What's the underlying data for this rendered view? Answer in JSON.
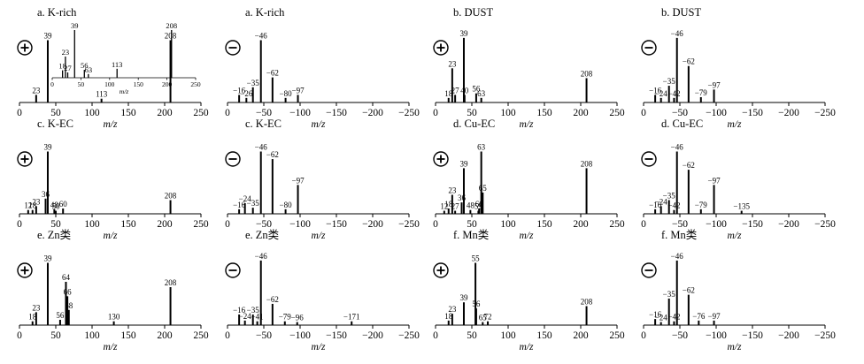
{
  "xlabel": "m/z",
  "pos_sign": "+",
  "neg_sign": "−",
  "colors": {
    "bar": "#000000",
    "axis": "#000000",
    "background": "#ffffff"
  },
  "chart_data": [
    {
      "id": "K-rich-pos",
      "title": "a. K-rich",
      "type": "bar",
      "polarity": "positive",
      "xlim": [
        0,
        250
      ],
      "xticks": [
        0,
        50,
        100,
        150,
        200,
        250
      ],
      "xtick_labels": [
        "0",
        "50",
        "100",
        "150",
        "200",
        "250"
      ],
      "peaks": [
        {
          "x": 23,
          "h": 0.1,
          "label": "23"
        },
        {
          "x": 39,
          "h": 0.82,
          "label": "39"
        },
        {
          "x": 113,
          "h": 0.05,
          "label": "113"
        },
        {
          "x": 208,
          "h": 0.82,
          "label": "208"
        }
      ],
      "inset": {
        "xlim": [
          0,
          250
        ],
        "xticks": [
          0,
          50,
          100,
          150,
          200,
          250
        ],
        "xtick_labels": [
          "0",
          "50",
          "100",
          "150",
          "200",
          "250"
        ],
        "xlabel": "m/z",
        "peaks": [
          {
            "x": 18,
            "h": 0.14,
            "label": "18"
          },
          {
            "x": 23,
            "h": 0.4,
            "label": "23"
          },
          {
            "x": 27,
            "h": 0.1,
            "label": "27"
          },
          {
            "x": 39,
            "h": 0.9,
            "label": "39"
          },
          {
            "x": 56,
            "h": 0.15,
            "label": "56"
          },
          {
            "x": 63,
            "h": 0.07,
            "label": "63"
          },
          {
            "x": 113,
            "h": 0.17,
            "label": "113"
          },
          {
            "x": 208,
            "h": 0.9,
            "label": "208"
          }
        ]
      }
    },
    {
      "id": "K-rich-neg",
      "title": "a. K-rich",
      "type": "bar",
      "polarity": "negative",
      "xlim": [
        0,
        -250
      ],
      "xticks": [
        0,
        -50,
        -100,
        -150,
        -200,
        -250
      ],
      "xtick_labels": [
        "0",
        "−50",
        "−100",
        "−150",
        "−200",
        "−250"
      ],
      "peaks": [
        {
          "x": -16,
          "h": 0.1,
          "label": "−16"
        },
        {
          "x": -26,
          "h": 0.06,
          "label": "−26"
        },
        {
          "x": -35,
          "h": 0.2,
          "label": "−35"
        },
        {
          "x": -46,
          "h": 0.82,
          "label": "−46"
        },
        {
          "x": -62,
          "h": 0.33,
          "label": "−62"
        },
        {
          "x": -80,
          "h": 0.06,
          "label": "−80"
        },
        {
          "x": -97,
          "h": 0.1,
          "label": "−97"
        }
      ]
    },
    {
      "id": "DUST-pos",
      "title": "b. DUST",
      "type": "bar",
      "polarity": "positive",
      "xlim": [
        0,
        250
      ],
      "xticks": [
        0,
        50,
        100,
        150,
        200,
        250
      ],
      "xtick_labels": [
        "0",
        "50",
        "100",
        "150",
        "200",
        "250"
      ],
      "peaks": [
        {
          "x": 18,
          "h": 0.06,
          "label": "18"
        },
        {
          "x": 23,
          "h": 0.45,
          "label": "23"
        },
        {
          "x": 27,
          "h": 0.1,
          "label": "27"
        },
        {
          "x": 39,
          "h": 0.85,
          "label": "39"
        },
        {
          "x": 40,
          "h": 0.1,
          "label": "40"
        },
        {
          "x": 56,
          "h": 0.12,
          "label": "56"
        },
        {
          "x": 63,
          "h": 0.06,
          "label": "63"
        },
        {
          "x": 208,
          "h": 0.32,
          "label": "208"
        }
      ]
    },
    {
      "id": "DUST-neg",
      "title": "b. DUST",
      "type": "bar",
      "polarity": "negative",
      "xlim": [
        0,
        -250
      ],
      "xticks": [
        0,
        -50,
        -100,
        -150,
        -200,
        -250
      ],
      "xtick_labels": [
        "0",
        "−50",
        "−100",
        "−150",
        "−200",
        "−250"
      ],
      "peaks": [
        {
          "x": -16,
          "h": 0.1,
          "label": "−16"
        },
        {
          "x": -24,
          "h": 0.06,
          "label": "−24"
        },
        {
          "x": -35,
          "h": 0.22,
          "label": "−35"
        },
        {
          "x": -42,
          "h": 0.06,
          "label": "−42"
        },
        {
          "x": -46,
          "h": 0.85,
          "label": "−46"
        },
        {
          "x": -62,
          "h": 0.48,
          "label": "−62"
        },
        {
          "x": -79,
          "h": 0.07,
          "label": "−79"
        },
        {
          "x": -97,
          "h": 0.17,
          "label": "−97"
        }
      ]
    },
    {
      "id": "K-EC-pos",
      "title": "c. K-EC",
      "type": "bar",
      "polarity": "positive",
      "xlim": [
        0,
        250
      ],
      "xticks": [
        0,
        50,
        100,
        150,
        200,
        250
      ],
      "xtick_labels": [
        "0",
        "50",
        "100",
        "150",
        "200",
        "250"
      ],
      "peaks": [
        {
          "x": 12,
          "h": 0.05,
          "label": "12"
        },
        {
          "x": 18,
          "h": 0.05,
          "label": "18"
        },
        {
          "x": 23,
          "h": 0.1,
          "label": "23"
        },
        {
          "x": 36,
          "h": 0.2,
          "label": "36"
        },
        {
          "x": 39,
          "h": 0.82,
          "label": "39"
        },
        {
          "x": 48,
          "h": 0.06,
          "label": "48"
        },
        {
          "x": 50,
          "h": 0.04,
          "label": "50"
        },
        {
          "x": 60,
          "h": 0.07,
          "label": "60"
        },
        {
          "x": 208,
          "h": 0.18,
          "label": "208"
        }
      ]
    },
    {
      "id": "K-EC-neg",
      "title": "c. K-EC",
      "type": "bar",
      "polarity": "negative",
      "xlim": [
        0,
        -250
      ],
      "xticks": [
        0,
        -50,
        -100,
        -150,
        -200,
        -250
      ],
      "xtick_labels": [
        "0",
        "−50",
        "−100",
        "−150",
        "−200",
        "−250"
      ],
      "peaks": [
        {
          "x": -16,
          "h": 0.06,
          "label": "−16"
        },
        {
          "x": -24,
          "h": 0.14,
          "label": "−24"
        },
        {
          "x": -35,
          "h": 0.08,
          "label": "−35"
        },
        {
          "x": -46,
          "h": 0.82,
          "label": "−46"
        },
        {
          "x": -62,
          "h": 0.72,
          "label": "−62"
        },
        {
          "x": -80,
          "h": 0.06,
          "label": "−80"
        },
        {
          "x": -97,
          "h": 0.38,
          "label": "−97"
        }
      ]
    },
    {
      "id": "Cu-EC-pos",
      "title": "d. Cu-EC",
      "type": "bar",
      "polarity": "positive",
      "xlim": [
        0,
        250
      ],
      "xticks": [
        0,
        50,
        100,
        150,
        200,
        250
      ],
      "xtick_labels": [
        "0",
        "50",
        "100",
        "150",
        "200",
        "250"
      ],
      "peaks": [
        {
          "x": 12,
          "h": 0.04,
          "label": "12"
        },
        {
          "x": 18,
          "h": 0.07,
          "label": "18"
        },
        {
          "x": 23,
          "h": 0.25,
          "label": "23"
        },
        {
          "x": 27,
          "h": 0.04,
          "label": "27"
        },
        {
          "x": 36,
          "h": 0.15,
          "label": "36"
        },
        {
          "x": 39,
          "h": 0.6,
          "label": "39"
        },
        {
          "x": 48,
          "h": 0.05,
          "label": "48"
        },
        {
          "x": 59,
          "h": 0.04,
          "label": "59"
        },
        {
          "x": 60,
          "h": 0.07,
          "label": "60"
        },
        {
          "x": 63,
          "h": 0.82,
          "label": "63"
        },
        {
          "x": 65,
          "h": 0.28,
          "label": "65"
        },
        {
          "x": 208,
          "h": 0.6,
          "label": "208"
        }
      ]
    },
    {
      "id": "Cu-EC-neg",
      "title": "d. Cu-EC",
      "type": "bar",
      "polarity": "negative",
      "xlim": [
        0,
        -250
      ],
      "xticks": [
        0,
        -50,
        -100,
        -150,
        -200,
        -250
      ],
      "xtick_labels": [
        "0",
        "−50",
        "−100",
        "−150",
        "−200",
        "−250"
      ],
      "peaks": [
        {
          "x": -16,
          "h": 0.06,
          "label": "−16"
        },
        {
          "x": -24,
          "h": 0.1,
          "label": "−24"
        },
        {
          "x": -35,
          "h": 0.18,
          "label": "−35"
        },
        {
          "x": -42,
          "h": 0.05,
          "label": "−42"
        },
        {
          "x": -46,
          "h": 0.82,
          "label": "−46"
        },
        {
          "x": -62,
          "h": 0.58,
          "label": "−62"
        },
        {
          "x": -79,
          "h": 0.06,
          "label": "−79"
        },
        {
          "x": -97,
          "h": 0.38,
          "label": "−97"
        },
        {
          "x": -135,
          "h": 0.04,
          "label": "−135"
        }
      ]
    },
    {
      "id": "Zn-pos",
      "title": "e. Zn类",
      "type": "bar",
      "polarity": "positive",
      "xlim": [
        0,
        250
      ],
      "xticks": [
        0,
        50,
        100,
        150,
        200,
        250
      ],
      "xtick_labels": [
        "0",
        "50",
        "100",
        "150",
        "200",
        "250"
      ],
      "peaks": [
        {
          "x": 18,
          "h": 0.05,
          "label": "18"
        },
        {
          "x": 23,
          "h": 0.17,
          "label": "23"
        },
        {
          "x": 39,
          "h": 0.82,
          "label": "39"
        },
        {
          "x": 56,
          "h": 0.07,
          "label": "56"
        },
        {
          "x": 64,
          "h": 0.57,
          "label": "64"
        },
        {
          "x": 66,
          "h": 0.38,
          "label": "66"
        },
        {
          "x": 68,
          "h": 0.2,
          "label": "68"
        },
        {
          "x": 130,
          "h": 0.05,
          "label": "130"
        },
        {
          "x": 208,
          "h": 0.5,
          "label": "208"
        }
      ]
    },
    {
      "id": "Zn-neg",
      "title": "e. Zn类",
      "type": "bar",
      "polarity": "negative",
      "xlim": [
        0,
        -250
      ],
      "xticks": [
        0,
        -50,
        -100,
        -150,
        -200,
        -250
      ],
      "xtick_labels": [
        "0",
        "−50",
        "−100",
        "−150",
        "−200",
        "−250"
      ],
      "peaks": [
        {
          "x": -16,
          "h": 0.14,
          "label": "−16"
        },
        {
          "x": -24,
          "h": 0.06,
          "label": "−24"
        },
        {
          "x": -35,
          "h": 0.14,
          "label": "−35"
        },
        {
          "x": -41,
          "h": 0.05,
          "label": "−41"
        },
        {
          "x": -46,
          "h": 0.85,
          "label": "−46"
        },
        {
          "x": -62,
          "h": 0.28,
          "label": "−62"
        },
        {
          "x": -79,
          "h": 0.05,
          "label": "−79"
        },
        {
          "x": -96,
          "h": 0.04,
          "label": "−96"
        },
        {
          "x": -171,
          "h": 0.05,
          "label": "−171"
        }
      ]
    },
    {
      "id": "Mn-pos",
      "title": "f. Mn类",
      "type": "bar",
      "polarity": "positive",
      "xlim": [
        0,
        250
      ],
      "xticks": [
        0,
        50,
        100,
        150,
        200,
        250
      ],
      "xtick_labels": [
        "0",
        "50",
        "100",
        "150",
        "200",
        "250"
      ],
      "peaks": [
        {
          "x": 18,
          "h": 0.06,
          "label": "18"
        },
        {
          "x": 23,
          "h": 0.15,
          "label": "23"
        },
        {
          "x": 39,
          "h": 0.3,
          "label": "39"
        },
        {
          "x": 55,
          "h": 0.82,
          "label": "55"
        },
        {
          "x": 56,
          "h": 0.22,
          "label": "56"
        },
        {
          "x": 65,
          "h": 0.04,
          "label": "65"
        },
        {
          "x": 72,
          "h": 0.05,
          "label": "72"
        },
        {
          "x": 208,
          "h": 0.25,
          "label": "208"
        }
      ]
    },
    {
      "id": "Mn-neg",
      "title": "f. Mn类",
      "type": "bar",
      "polarity": "negative",
      "xlim": [
        0,
        -250
      ],
      "xticks": [
        0,
        -50,
        -100,
        -150,
        -200,
        -250
      ],
      "xtick_labels": [
        "0",
        "−50",
        "−100",
        "−150",
        "−200",
        "−250"
      ],
      "peaks": [
        {
          "x": -16,
          "h": 0.08,
          "label": "−16"
        },
        {
          "x": -24,
          "h": 0.04,
          "label": "−24"
        },
        {
          "x": -35,
          "h": 0.35,
          "label": "−35"
        },
        {
          "x": -42,
          "h": 0.05,
          "label": "−42"
        },
        {
          "x": -46,
          "h": 0.85,
          "label": "−46"
        },
        {
          "x": -62,
          "h": 0.4,
          "label": "−62"
        },
        {
          "x": -76,
          "h": 0.06,
          "label": "−76"
        },
        {
          "x": -97,
          "h": 0.06,
          "label": "−97"
        }
      ]
    }
  ]
}
